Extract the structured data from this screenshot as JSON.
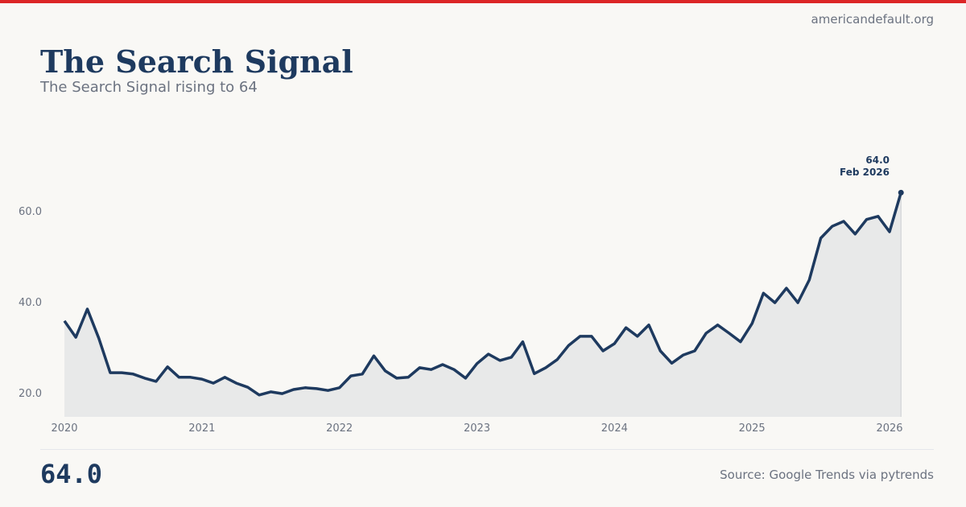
{
  "site": "americandefault.org",
  "title": "The Search Signal",
  "subtitle": "The Search Signal rising to 64",
  "footer": {
    "value": "64.0",
    "source": "Source: Google Trends via pytrends"
  },
  "colors": {
    "accent": "#dc2626",
    "line": "#1e3a5f",
    "area": "#e8e9e9"
  },
  "chart_data": {
    "type": "area",
    "xlabel": "",
    "ylabel": "",
    "x_start": "2020-01",
    "frequency": "monthly",
    "x_ticks": [
      "2020",
      "2021",
      "2022",
      "2023",
      "2024",
      "2025",
      "2026"
    ],
    "y_ticks": [
      "20.0",
      "40.0",
      "60.0"
    ],
    "ylim": [
      14.7,
      75
    ],
    "grid": false,
    "values": [
      35.8,
      32.2,
      38.4,
      32.0,
      24.4,
      24.4,
      24.1,
      23.2,
      22.5,
      25.7,
      23.4,
      23.4,
      23.0,
      22.1,
      23.4,
      22.1,
      21.2,
      19.5,
      20.2,
      19.8,
      20.7,
      21.1,
      20.9,
      20.5,
      21.1,
      23.7,
      24.1,
      28.1,
      24.8,
      23.2,
      23.4,
      25.5,
      25.1,
      26.2,
      25.1,
      23.2,
      26.4,
      28.5,
      27.1,
      27.8,
      31.2,
      24.2,
      25.5,
      27.3,
      30.4,
      32.4,
      32.4,
      29.2,
      30.8,
      34.3,
      32.4,
      34.9,
      29.2,
      26.5,
      28.3,
      29.2,
      33.1,
      34.9,
      33.1,
      31.2,
      35.2,
      41.9,
      39.8,
      43.0,
      39.8,
      44.8,
      54.0,
      56.6,
      57.7,
      54.9,
      58.1,
      58.8,
      55.4,
      64.0
    ],
    "annotation": {
      "value": "64.0",
      "label": "Feb 2026"
    }
  }
}
